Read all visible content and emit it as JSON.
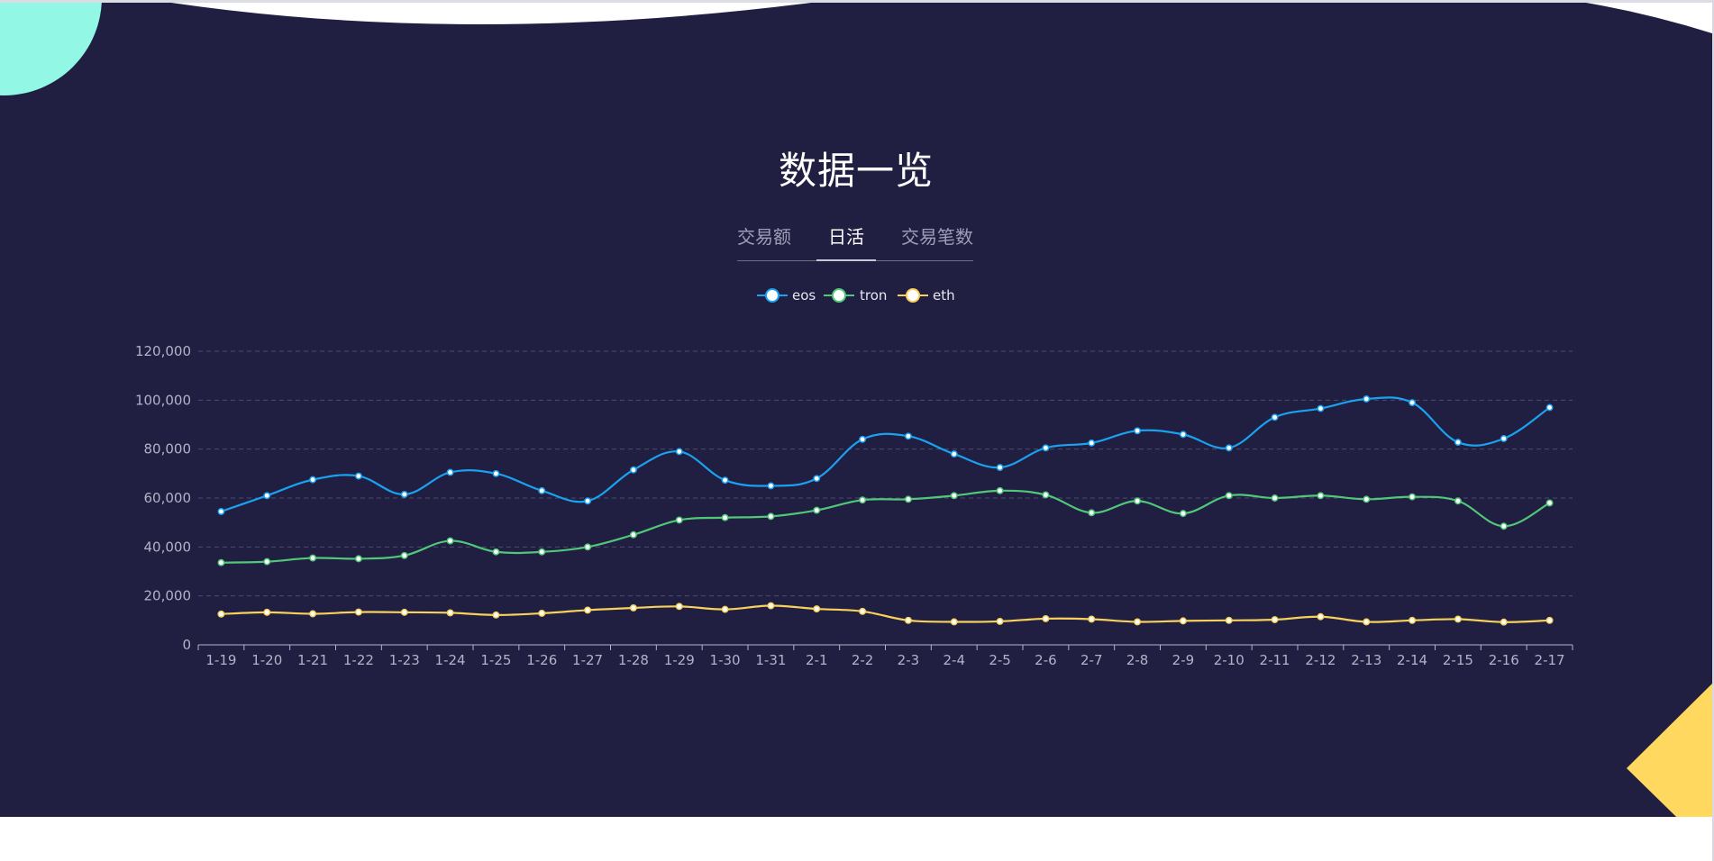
{
  "page": {
    "title": "数据一览",
    "tabs": [
      {
        "label": "交易额",
        "active": false
      },
      {
        "label": "日活",
        "active": true
      },
      {
        "label": "交易笔数",
        "active": false
      }
    ]
  },
  "colors": {
    "background": "#201f42",
    "eos": "#1aa1f0",
    "tron": "#50c878",
    "eth": "#f8d15c",
    "accent_circle": "#93f7e6",
    "accent_triangle": "#ffd95f"
  },
  "chart_data": {
    "type": "line",
    "categories": [
      "1-19",
      "1-20",
      "1-21",
      "1-22",
      "1-23",
      "1-24",
      "1-25",
      "1-26",
      "1-27",
      "1-28",
      "1-29",
      "1-30",
      "1-31",
      "2-1",
      "2-2",
      "2-3",
      "2-4",
      "2-5",
      "2-6",
      "2-7",
      "2-8",
      "2-9",
      "2-10",
      "2-11",
      "2-12",
      "2-13",
      "2-14",
      "2-15",
      "2-16",
      "2-17"
    ],
    "ylim": [
      0,
      120000
    ],
    "yticks": [
      0,
      20000,
      40000,
      60000,
      80000,
      100000,
      120000
    ],
    "ytick_labels": [
      "0",
      "20,000",
      "40,000",
      "60,000",
      "80,000",
      "100,000",
      "120,000"
    ],
    "grid": true,
    "legend_position": "top-center",
    "series": [
      {
        "name": "eos",
        "color": "#1aa1f0",
        "values": [
          54500,
          61000,
          67500,
          69000,
          61500,
          70500,
          70000,
          63000,
          58800,
          71500,
          79000,
          67300,
          65000,
          68000,
          84000,
          85300,
          78000,
          72500,
          80500,
          82500,
          87500,
          86000,
          80500,
          93000,
          96600,
          100500,
          99000,
          82800,
          84300,
          97000
        ]
      },
      {
        "name": "tron",
        "color": "#50c878",
        "values": [
          33600,
          34000,
          35500,
          35200,
          36500,
          42500,
          38000,
          38000,
          40000,
          45000,
          51000,
          52000,
          52500,
          55000,
          59200,
          59500,
          61000,
          63000,
          61300,
          54000,
          58800,
          53700,
          61000,
          60000,
          61000,
          59500,
          60500,
          58800,
          48500,
          58000
        ]
      },
      {
        "name": "eth",
        "color": "#f8d15c",
        "values": [
          12600,
          13300,
          12700,
          13400,
          13300,
          13100,
          12200,
          12900,
          14200,
          15100,
          15700,
          14500,
          16000,
          14700,
          13700,
          10000,
          9400,
          9600,
          10700,
          10500,
          9400,
          9800,
          10000,
          10300,
          11500,
          9400,
          10000,
          10500,
          9300,
          10000
        ]
      }
    ]
  }
}
